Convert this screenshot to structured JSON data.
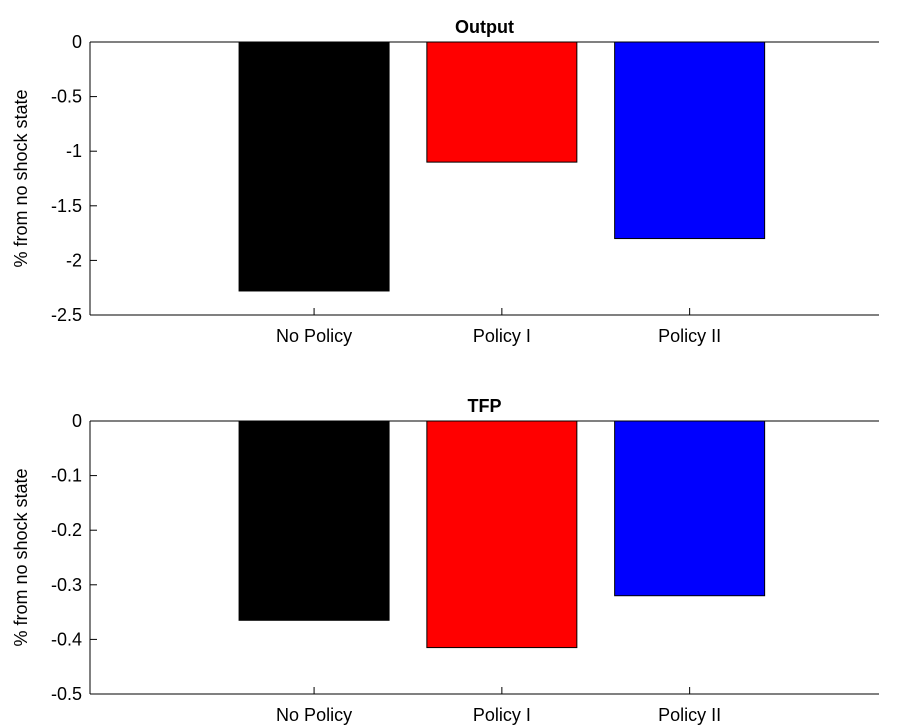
{
  "chart_data": [
    {
      "type": "bar",
      "title": "Output",
      "ylabel": "% from no shock state",
      "xlabel": "",
      "categories": [
        "No Policy",
        "Policy I",
        "Policy II"
      ],
      "values": [
        -2.28,
        -1.1,
        -1.8
      ],
      "colors": [
        "#000000",
        "#ff0000",
        "#0000ff"
      ],
      "ylim": [
        -2.5,
        0
      ],
      "yticks": [
        0,
        -0.5,
        -1,
        -1.5,
        -2,
        -2.5
      ],
      "ytick_labels": [
        "0",
        "-0.5",
        "-1",
        "-1.5",
        "-2",
        "-2.5"
      ],
      "grid": false,
      "legend": "none"
    },
    {
      "type": "bar",
      "title": "TFP",
      "ylabel": "% from no shock state",
      "xlabel": "",
      "categories": [
        "No Policy",
        "Policy I",
        "Policy II"
      ],
      "values": [
        -0.365,
        -0.415,
        -0.32
      ],
      "colors": [
        "#000000",
        "#ff0000",
        "#0000ff"
      ],
      "ylim": [
        -0.5,
        0
      ],
      "yticks": [
        0,
        -0.1,
        -0.2,
        -0.3,
        -0.4,
        -0.5
      ],
      "ytick_labels": [
        "0",
        "-0.1",
        "-0.2",
        "-0.3",
        "-0.4",
        "-0.5"
      ],
      "grid": false,
      "legend": "none"
    }
  ]
}
